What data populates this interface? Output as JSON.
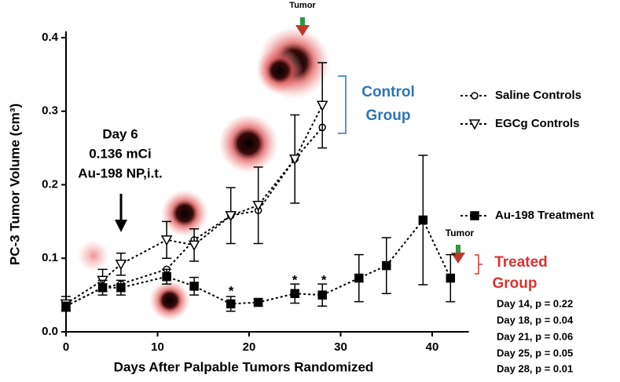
{
  "chart_data": {
    "type": "line",
    "x_label": "Days After Palpable Tumors Randomized",
    "y_label": "PC-3 Tumor Volume (cm³)",
    "xlim": [
      0,
      44
    ],
    "ylim": [
      0,
      0.4
    ],
    "xticks": [
      0,
      10,
      20,
      30,
      40
    ],
    "yticks": [
      {
        "value": 0,
        "label": "0.0"
      },
      0.1,
      0.2,
      0.3,
      0.4
    ],
    "series": [
      {
        "name": "Saline Controls",
        "color": "#000000",
        "marker": "circle",
        "x": [
          0,
          4,
          6,
          11,
          14,
          18,
          21,
          25,
          28
        ],
        "values": [
          0.035,
          0.06,
          0.065,
          0.085,
          0.125,
          0.158,
          0.165,
          0.235,
          0.278
        ]
      },
      {
        "name": "EGCg  Controls",
        "color": "#000000",
        "marker": "triangle",
        "x": [
          0,
          4,
          6,
          11,
          14,
          18,
          21,
          25,
          28
        ],
        "values": [
          0.038,
          0.07,
          0.092,
          0.125,
          0.118,
          0.158,
          0.172,
          0.235,
          0.308
        ],
        "errors": [
          0.01,
          0.015,
          0.015,
          0.025,
          0.022,
          0.038,
          0.052,
          0.06,
          0.058
        ]
      },
      {
        "name": "Au-198 Treatment",
        "color": "#000000",
        "marker": "square",
        "x": [
          0,
          4,
          6,
          11,
          14,
          18,
          21,
          25,
          28,
          32,
          35,
          39,
          42
        ],
        "values": [
          0.035,
          0.06,
          0.06,
          0.075,
          0.062,
          0.038,
          0.04,
          0.052,
          0.05,
          0.073,
          0.09,
          0.152,
          0.073
        ],
        "errors": [
          0.005,
          0.01,
          0.01,
          0.01,
          0.012,
          0.01,
          0.005,
          0.013,
          0.015,
          0.032,
          0.038,
          0.088,
          0.032
        ]
      }
    ],
    "annotations": {
      "tumor_top": "Tumor",
      "tumor_right": "Tumor",
      "dose": [
        "Day 6",
        "0.136 mCi",
        "Au-198 NP,i.t."
      ],
      "control_group": [
        "Control",
        "Group"
      ],
      "treated_group": [
        "Treated",
        "Group"
      ],
      "asterisks": [
        "*",
        "*",
        "*"
      ],
      "p_values": [
        "Day 14, p = 0.22",
        "Day 18, p = 0.04",
        "Day 21, p = 0.06",
        "Day 25, p = 0.05",
        "Day 28, p = 0.01"
      ]
    }
  }
}
